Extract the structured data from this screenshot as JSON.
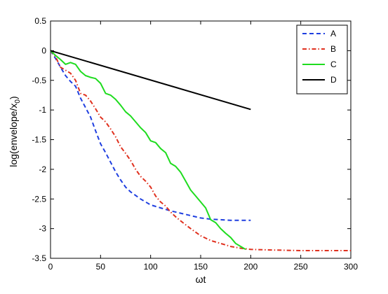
{
  "chart_data": {
    "type": "line",
    "xlabel": "ωt",
    "ylabel_main": "log(envelope/x",
    "ylabel_sub": "0",
    "ylabel_close": ")",
    "xlim": [
      0,
      300
    ],
    "ylim": [
      -3.5,
      0.5
    ],
    "xticks": [
      0,
      50,
      100,
      150,
      200,
      250,
      300
    ],
    "yticks": [
      0.5,
      0,
      -0.5,
      -1,
      -1.5,
      -2,
      -2.5,
      -3,
      -3.5
    ],
    "grid": false,
    "legend_position": "top-right",
    "series": [
      {
        "name": "A",
        "color": "#1f3fe0",
        "dash": "dashed",
        "x": [
          0,
          5,
          10,
          15,
          20,
          25,
          30,
          35,
          40,
          45,
          50,
          55,
          60,
          65,
          70,
          75,
          80,
          90,
          100,
          110,
          120,
          130,
          140,
          150,
          160,
          170,
          180,
          190,
          200
        ],
        "y": [
          0,
          -0.13,
          -0.28,
          -0.42,
          -0.52,
          -0.6,
          -0.8,
          -0.96,
          -1.12,
          -1.35,
          -1.57,
          -1.72,
          -1.88,
          -2.04,
          -2.18,
          -2.3,
          -2.38,
          -2.5,
          -2.6,
          -2.65,
          -2.7,
          -2.74,
          -2.78,
          -2.82,
          -2.84,
          -2.85,
          -2.86,
          -2.86,
          -2.86
        ]
      },
      {
        "name": "B",
        "color": "#e0301e",
        "dash": "dashdot",
        "x": [
          0,
          5,
          10,
          15,
          20,
          25,
          30,
          35,
          40,
          45,
          50,
          55,
          60,
          65,
          70,
          75,
          80,
          85,
          90,
          95,
          100,
          105,
          110,
          115,
          120,
          125,
          130,
          140,
          150,
          160,
          170,
          180,
          190,
          200,
          220,
          250,
          280,
          300
        ],
        "y": [
          0,
          -0.1,
          -0.28,
          -0.33,
          -0.38,
          -0.5,
          -0.72,
          -0.75,
          -0.85,
          -0.98,
          -1.12,
          -1.2,
          -1.32,
          -1.45,
          -1.62,
          -1.73,
          -1.85,
          -2.0,
          -2.12,
          -2.2,
          -2.3,
          -2.45,
          -2.55,
          -2.62,
          -2.72,
          -2.8,
          -2.87,
          -3.0,
          -3.12,
          -3.2,
          -3.25,
          -3.3,
          -3.33,
          -3.35,
          -3.36,
          -3.37,
          -3.37,
          -3.37
        ]
      },
      {
        "name": "C",
        "color": "#1fdc1f",
        "dash": "solid",
        "x": [
          0,
          5,
          10,
          15,
          20,
          25,
          30,
          35,
          40,
          45,
          50,
          55,
          60,
          65,
          70,
          75,
          80,
          85,
          90,
          95,
          100,
          105,
          110,
          115,
          120,
          125,
          130,
          135,
          140,
          145,
          150,
          155,
          160,
          165,
          170,
          175,
          180,
          185,
          190,
          195
        ],
        "y": [
          0,
          -0.08,
          -0.15,
          -0.23,
          -0.2,
          -0.23,
          -0.35,
          -0.42,
          -0.45,
          -0.47,
          -0.55,
          -0.72,
          -0.75,
          -0.82,
          -0.92,
          -1.03,
          -1.1,
          -1.2,
          -1.3,
          -1.38,
          -1.52,
          -1.55,
          -1.65,
          -1.72,
          -1.9,
          -1.95,
          -2.05,
          -2.2,
          -2.35,
          -2.45,
          -2.55,
          -2.65,
          -2.85,
          -2.9,
          -3.0,
          -3.08,
          -3.15,
          -3.25,
          -3.3,
          -3.35
        ]
      },
      {
        "name": "D",
        "color": "#000000",
        "dash": "solid",
        "x": [
          0,
          200
        ],
        "y": [
          0,
          -0.99
        ]
      }
    ]
  }
}
